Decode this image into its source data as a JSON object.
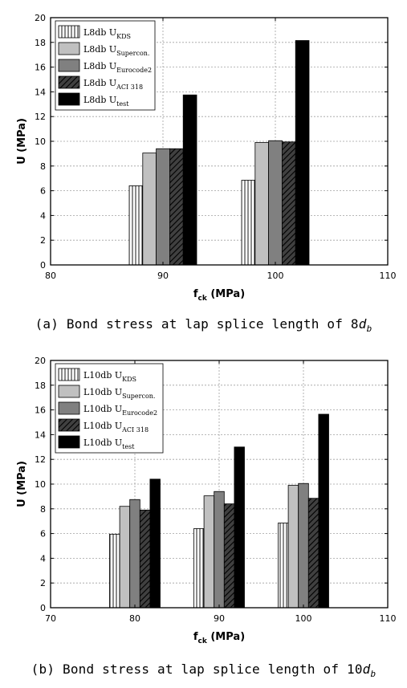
{
  "figures": [
    {
      "caption_text": "(a) Bond stress at lap splice length of 8",
      "caption_var": "d",
      "caption_sub": "b"
    },
    {
      "caption_text": "(b) Bond stress at lap splice length of 10",
      "caption_var": "d",
      "caption_sub": "b"
    }
  ],
  "chart_data": [
    {
      "type": "bar",
      "xlabel": "f",
      "xlabel_sub": "ck",
      "xlabel_unit": " (MPa)",
      "ylabel": "U (MPa)",
      "xlim": [
        80,
        110
      ],
      "ylim": [
        0,
        20
      ],
      "xticks": [
        80,
        90,
        100,
        110
      ],
      "yticks": [
        0,
        2,
        4,
        6,
        8,
        10,
        12,
        14,
        16,
        18,
        20
      ],
      "grid": "dotted",
      "legend_position": "top-left",
      "categories": [
        90,
        100
      ],
      "series": [
        {
          "name": "L8db U",
          "sub": "KDS",
          "fill": "hatch-vertical",
          "values": [
            6.4,
            6.85
          ]
        },
        {
          "name": "L8db U",
          "sub": "Supercon.",
          "fill": "#c0c0c0",
          "values": [
            9.05,
            9.9
          ]
        },
        {
          "name": "L8db U",
          "sub": "Eurocode2",
          "fill": "#808080",
          "values": [
            9.4,
            10.05
          ]
        },
        {
          "name": "L8db U",
          "sub": "ACI 318",
          "fill": "hatch-diagonal",
          "values": [
            9.4,
            9.95
          ]
        },
        {
          "name": "L8db U",
          "sub": "test",
          "fill": "#000000",
          "values": [
            13.75,
            18.15
          ]
        }
      ]
    },
    {
      "type": "bar",
      "xlabel": "f",
      "xlabel_sub": "ck",
      "xlabel_unit": " (MPa)",
      "ylabel": "U (MPa)",
      "xlim": [
        70,
        110
      ],
      "ylim": [
        0,
        20
      ],
      "xticks": [
        70,
        80,
        90,
        100,
        110
      ],
      "yticks": [
        0,
        2,
        4,
        6,
        8,
        10,
        12,
        14,
        16,
        18,
        20
      ],
      "grid": "dotted",
      "legend_position": "top-left",
      "categories": [
        80,
        90,
        100
      ],
      "series": [
        {
          "name": "L10db U",
          "sub": "KDS",
          "fill": "hatch-vertical",
          "values": [
            5.95,
            6.4,
            6.85
          ]
        },
        {
          "name": "L10db U",
          "sub": "Supercon.",
          "fill": "#c0c0c0",
          "values": [
            8.2,
            9.05,
            9.9
          ]
        },
        {
          "name": "L10db U",
          "sub": "Eurocode2",
          "fill": "#808080",
          "values": [
            8.75,
            9.4,
            10.05
          ]
        },
        {
          "name": "L10db U",
          "sub": "ACI 318",
          "fill": "hatch-diagonal",
          "values": [
            7.9,
            8.4,
            8.85
          ]
        },
        {
          "name": "L10db U",
          "sub": "test",
          "fill": "#000000",
          "values": [
            10.4,
            13.0,
            15.65
          ]
        }
      ]
    }
  ]
}
